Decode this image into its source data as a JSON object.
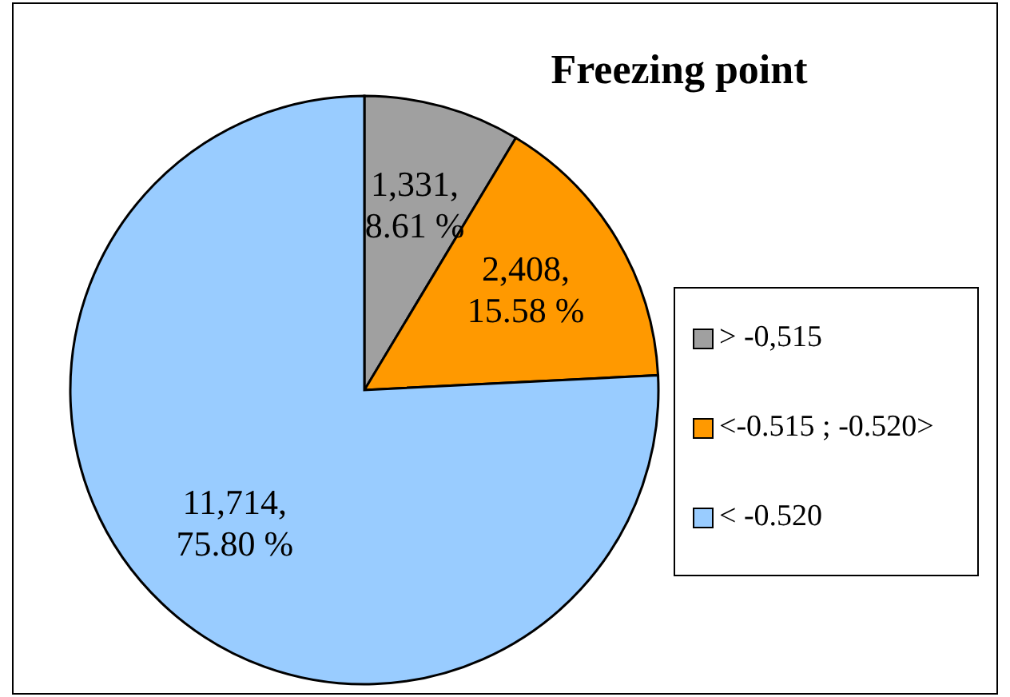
{
  "chart_data": {
    "type": "pie",
    "title": "Freezing point",
    "categories": [
      "> -0,515",
      "<-0.515 ; -0.520>",
      "< -0.520"
    ],
    "values": [
      1331,
      2408,
      11714
    ],
    "colors": [
      "#a0a0a0",
      "#ff9900",
      "#99ccff"
    ],
    "value_labels": [
      "1,331,\n8.61 %",
      "2,408,\n15.58 %",
      "11,714,\n75.80 %"
    ],
    "legend": "right"
  }
}
